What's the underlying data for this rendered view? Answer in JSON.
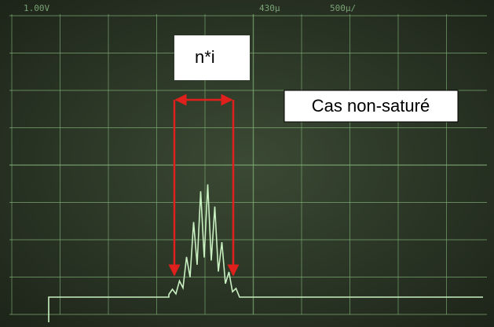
{
  "scope": {
    "channel": "1.00V",
    "trigger": "430µ",
    "timebase": "500µ/"
  },
  "annotations": {
    "pulse_width": "n*i",
    "condition": "Cas non-saturé"
  }
}
